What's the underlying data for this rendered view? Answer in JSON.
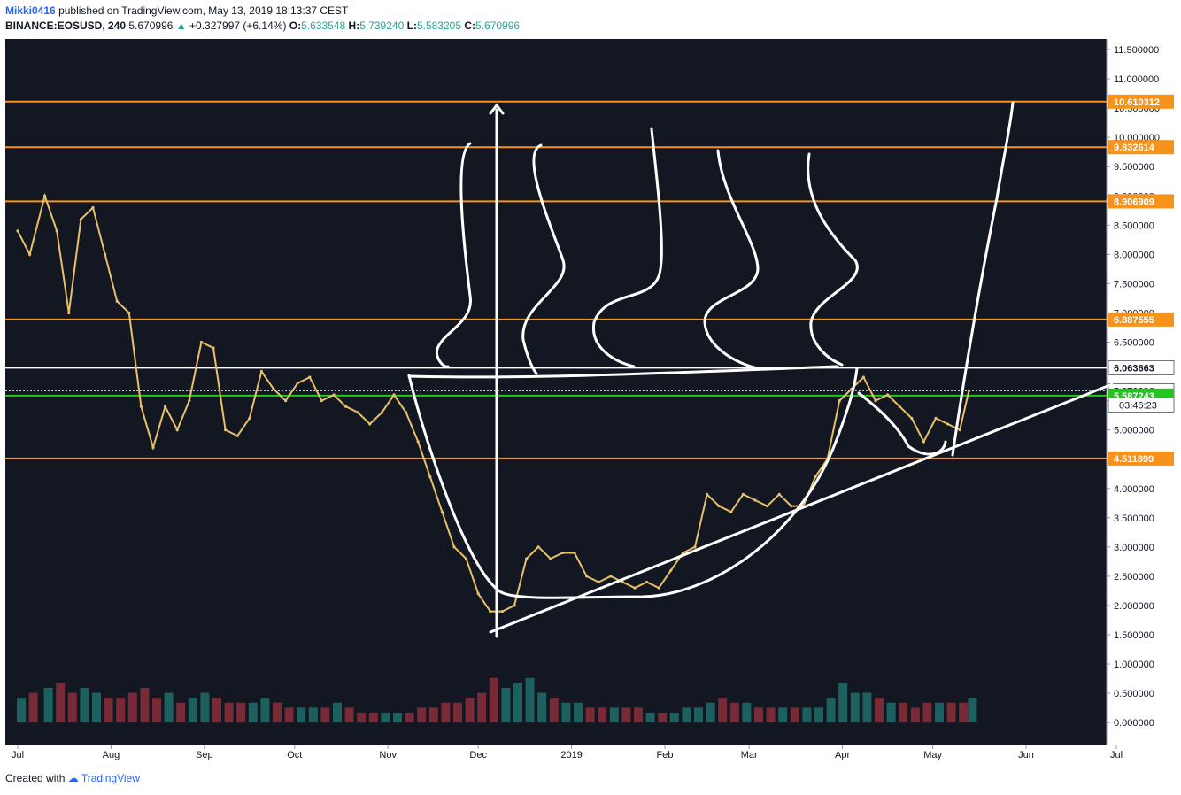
{
  "header": {
    "author": "Mikki0416",
    "published_text": "published on TradingView.com, May 13, 2019 18:13:37 CEST",
    "symbol": "BINANCE:EOSUSD, 240",
    "last": "5.670996",
    "change": "+0.327997 (+6.14%)",
    "o_label": "O:",
    "o": "5.633548",
    "h_label": "H:",
    "h": "5.739240",
    "l_label": "L:",
    "l": "5.583205",
    "c_label": "C:",
    "c": "5.670996"
  },
  "footer": {
    "created_with": "Created with",
    "brand": "TradingView"
  },
  "colors": {
    "background": "#131722",
    "orange": "#f7931a",
    "green": "#26c420",
    "white": "#ffffff",
    "candle": "#e8c06a"
  },
  "chart_data": {
    "type": "line",
    "title": "",
    "ylim": [
      0,
      11.75
    ],
    "y_ticks": [
      "11.500000",
      "11.000000",
      "10.500000",
      "10.000000",
      "9.500000",
      "9.000000",
      "8.500000",
      "8.000000",
      "7.500000",
      "7.000000",
      "6.500000",
      "6.000000",
      "5.500000",
      "5.000000",
      "4.500000",
      "4.000000",
      "3.500000",
      "3.000000",
      "2.500000",
      "2.000000",
      "1.500000",
      "1.000000",
      "0.500000",
      "0.000000"
    ],
    "x_ticks": [
      "Jul",
      "Aug",
      "Sep",
      "Oct",
      "Nov",
      "Dec",
      "2019",
      "Feb",
      "Mar",
      "Apr",
      "May",
      "Jun",
      "Jul"
    ],
    "price_series": {
      "name": "EOSUSD",
      "x": [
        "2018-07-01",
        "2018-07-05",
        "2018-07-10",
        "2018-07-14",
        "2018-07-18",
        "2018-07-22",
        "2018-07-26",
        "2018-07-30",
        "2018-08-03",
        "2018-08-07",
        "2018-08-11",
        "2018-08-15",
        "2018-08-19",
        "2018-08-23",
        "2018-08-27",
        "2018-08-31",
        "2018-09-04",
        "2018-09-08",
        "2018-09-12",
        "2018-09-16",
        "2018-09-20",
        "2018-09-24",
        "2018-09-28",
        "2018-10-02",
        "2018-10-06",
        "2018-10-10",
        "2018-10-14",
        "2018-10-18",
        "2018-10-22",
        "2018-10-26",
        "2018-10-30",
        "2018-11-03",
        "2018-11-07",
        "2018-11-11",
        "2018-11-15",
        "2018-11-19",
        "2018-11-23",
        "2018-11-27",
        "2018-12-01",
        "2018-12-05",
        "2018-12-09",
        "2018-12-13",
        "2018-12-17",
        "2018-12-21",
        "2018-12-25",
        "2018-12-29",
        "2019-01-02",
        "2019-01-06",
        "2019-01-10",
        "2019-01-14",
        "2019-01-18",
        "2019-01-22",
        "2019-01-26",
        "2019-01-30",
        "2019-02-03",
        "2019-02-07",
        "2019-02-11",
        "2019-02-15",
        "2019-02-19",
        "2019-02-23",
        "2019-02-27",
        "2019-03-03",
        "2019-03-07",
        "2019-03-11",
        "2019-03-15",
        "2019-03-19",
        "2019-03-23",
        "2019-03-27",
        "2019-03-31",
        "2019-04-04",
        "2019-04-08",
        "2019-04-12",
        "2019-04-16",
        "2019-04-20",
        "2019-04-24",
        "2019-04-28",
        "2019-05-02",
        "2019-05-06",
        "2019-05-10",
        "2019-05-13"
      ],
      "values": [
        8.4,
        8.0,
        9.0,
        8.4,
        7.0,
        8.6,
        8.8,
        8.0,
        7.2,
        7.0,
        5.4,
        4.7,
        5.4,
        5.0,
        5.5,
        6.5,
        6.4,
        5.0,
        4.9,
        5.2,
        6.0,
        5.7,
        5.5,
        5.8,
        5.9,
        5.5,
        5.6,
        5.4,
        5.3,
        5.1,
        5.3,
        5.6,
        5.3,
        4.8,
        4.2,
        3.6,
        3.0,
        2.8,
        2.2,
        1.9,
        1.9,
        2.0,
        2.8,
        3.0,
        2.8,
        2.9,
        2.9,
        2.5,
        2.4,
        2.5,
        2.4,
        2.3,
        2.4,
        2.3,
        2.6,
        2.9,
        3.0,
        3.9,
        3.7,
        3.6,
        3.9,
        3.8,
        3.7,
        3.9,
        3.7,
        3.7,
        4.2,
        4.5,
        5.5,
        5.7,
        5.9,
        5.5,
        5.6,
        5.4,
        5.2,
        4.8,
        5.2,
        5.1,
        5.0,
        5.67
      ]
    },
    "volume_series": {
      "name": "Volume",
      "values": [
        0.5,
        0.6,
        0.7,
        0.8,
        0.6,
        0.7,
        0.6,
        0.5,
        0.5,
        0.6,
        0.7,
        0.5,
        0.6,
        0.4,
        0.5,
        0.6,
        0.5,
        0.4,
        0.4,
        0.4,
        0.5,
        0.4,
        0.3,
        0.3,
        0.3,
        0.3,
        0.4,
        0.3,
        0.2,
        0.2,
        0.2,
        0.2,
        0.2,
        0.3,
        0.3,
        0.4,
        0.4,
        0.5,
        0.6,
        0.9,
        0.7,
        0.8,
        0.9,
        0.6,
        0.5,
        0.4,
        0.4,
        0.3,
        0.3,
        0.3,
        0.3,
        0.3,
        0.2,
        0.2,
        0.2,
        0.3,
        0.3,
        0.4,
        0.5,
        0.4,
        0.4,
        0.3,
        0.3,
        0.3,
        0.3,
        0.3,
        0.3,
        0.5,
        0.8,
        0.6,
        0.6,
        0.5,
        0.4,
        0.4,
        0.3,
        0.4,
        0.4,
        0.4,
        0.4,
        0.5
      ]
    },
    "levels": [
      {
        "label": "10.610312",
        "value": 10.610312,
        "color": "#f7931a"
      },
      {
        "label": "9.832614",
        "value": 9.832614,
        "color": "#f7931a"
      },
      {
        "label": "8.906909",
        "value": 8.906909,
        "color": "#f7931a"
      },
      {
        "label": "6.887555",
        "value": 6.887555,
        "color": "#f7931a"
      },
      {
        "label": "6.063663",
        "value": 6.063663,
        "color": "#ffffff"
      },
      {
        "label": "5.670996",
        "value": 5.670996,
        "color": "#ffffff"
      },
      {
        "label": "5.587243",
        "value": 5.587243,
        "color": "#26c420"
      },
      {
        "label": "4.511899",
        "value": 4.511899,
        "color": "#f7931a"
      }
    ],
    "countdown": "03:46:23"
  }
}
